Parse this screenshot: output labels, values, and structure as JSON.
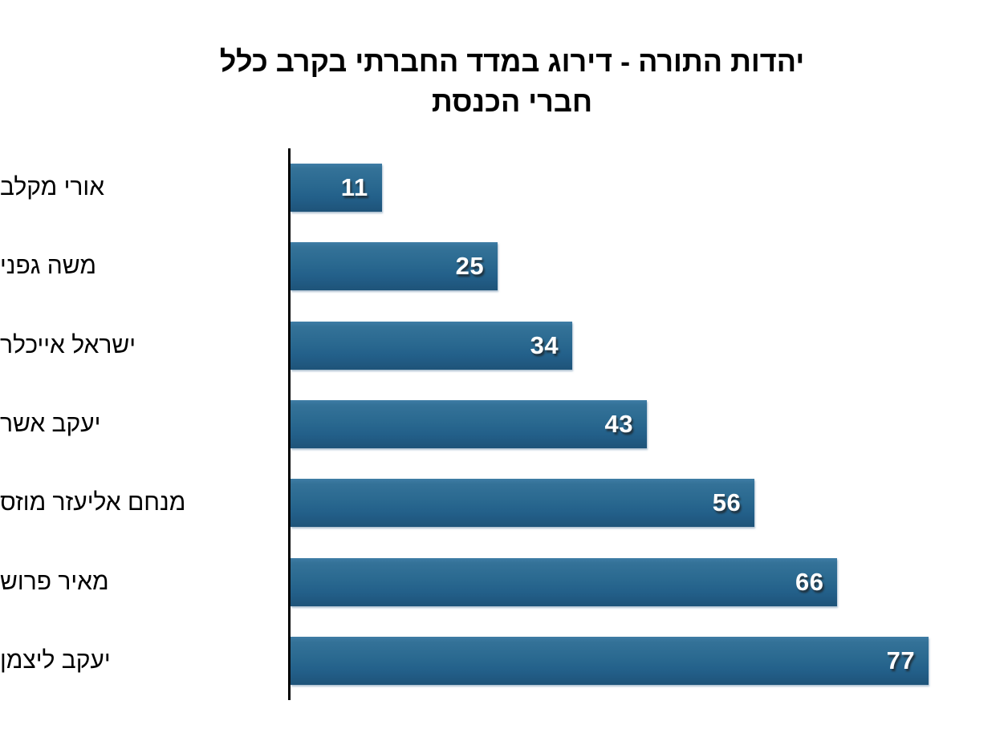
{
  "chart_data": {
    "type": "bar",
    "orientation": "horizontal",
    "title": "יהדות התורה - דירוג במדד החברתי בקרב כלל חברי הכנסת",
    "title_lines": [
      "יהדות התורה - דירוג במדד החברתי בקרב כלל",
      "חברי הכנסת"
    ],
    "categories": [
      "אורי מקלב",
      "משה גפני",
      "ישראל אייכלר",
      "יעקב אשר",
      "מנחם אליעזר מוזס",
      "מאיר פרוש",
      "יעקב ליצמן"
    ],
    "values": [
      11,
      25,
      34,
      43,
      56,
      66,
      77
    ],
    "xlabel": "",
    "ylabel": "",
    "xlim": [
      0,
      86
    ],
    "grid": false,
    "legend_position": "none",
    "value_label_position": "inside-end",
    "colors": {
      "bar_top": "#3f7da5",
      "bar_bottom": "#1e5379",
      "value_text": "#ffffff",
      "axis_line": "#000000",
      "title_text": "#000000",
      "category_text": "#000000",
      "background": "#ffffff"
    }
  }
}
